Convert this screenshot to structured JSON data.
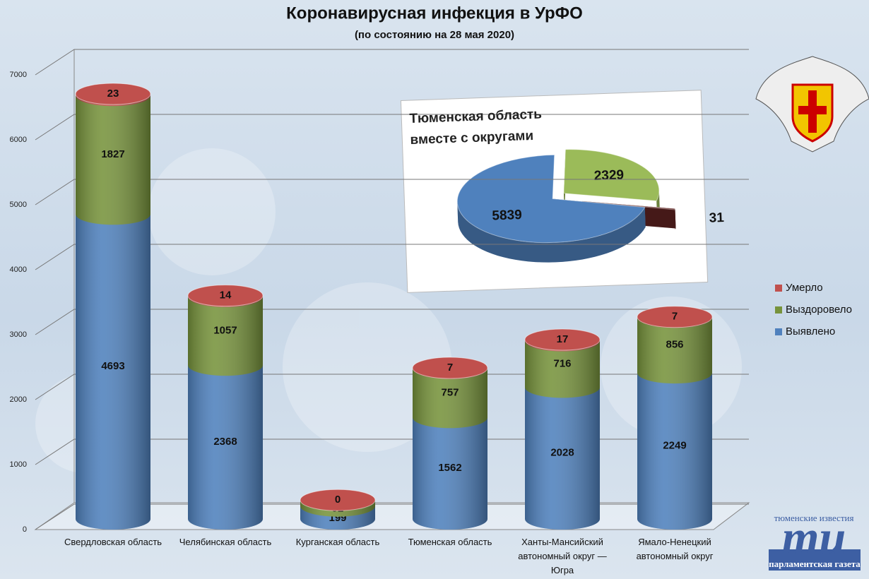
{
  "chart_data": [
    {
      "type": "bar3d-stacked",
      "title": "Коронавирусная инфекция в УрФО",
      "subtitle": "(по состоянию на 28 мая 2020)",
      "categories": [
        "Свердловская область",
        "Челябинская область",
        "Курганская область",
        "Тюменская область",
        "Ханты-Мансийский автономный округ — Югра",
        "Ямало-Ненецкий автономный округ"
      ],
      "series": [
        {
          "name": "Выявлено",
          "color": "#4f81bd",
          "values": [
            4693,
            2368,
            199,
            1562,
            2028,
            2249
          ]
        },
        {
          "name": "Выздоровело",
          "color": "#77933c",
          "values": [
            1827,
            1057,
            92,
            757,
            716,
            856
          ]
        },
        {
          "name": "Умерло",
          "color": "#c0504d",
          "values": [
            23,
            14,
            0,
            7,
            17,
            7
          ]
        }
      ],
      "ylim": [
        0,
        7000
      ],
      "yticks": [
        0,
        1000,
        2000,
        3000,
        4000,
        5000,
        6000,
        7000
      ],
      "grid": true,
      "legend": "right"
    },
    {
      "type": "pie3d",
      "title": "Тюменская область вместе с округами",
      "values": [
        2329,
        31,
        5839
      ],
      "colors": [
        "#9bbb59",
        "#632523",
        "#4f81bd"
      ]
    }
  ],
  "logo": {
    "top": "тюменские известия",
    "mark": "ти",
    "bottom": "парламентская газета"
  }
}
